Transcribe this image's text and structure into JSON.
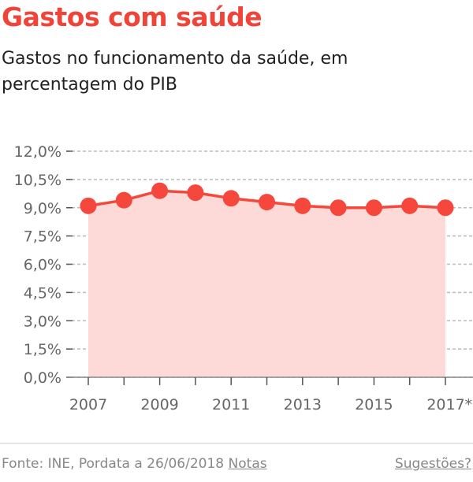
{
  "title": "Gastos com saúde",
  "subtitle": "Gastos no funcionamento da saúde, em percentagem do PIB",
  "footer": {
    "source": "Fonte: INE, Pordata a 26/06/2018",
    "notes_link": "Notas",
    "suggestions_link": "Sugestões?"
  },
  "chart_data": {
    "type": "area",
    "x": [
      2007,
      2008,
      2009,
      2010,
      2011,
      2012,
      2013,
      2014,
      2015,
      2016,
      2017
    ],
    "x_tick_labels": [
      "2007",
      "2009",
      "2011",
      "2013",
      "2015",
      "2017**"
    ],
    "x_tick_values": [
      2007,
      2009,
      2011,
      2013,
      2015,
      2017
    ],
    "values": [
      9.1,
      9.4,
      9.9,
      9.8,
      9.5,
      9.3,
      9.1,
      9.0,
      9.0,
      9.1,
      9.0
    ],
    "ylim": [
      0,
      12
    ],
    "y_ticks": [
      0,
      1.5,
      3,
      4.5,
      6,
      7.5,
      9,
      10.5,
      12
    ],
    "y_tick_labels": [
      "0,0%",
      "1,5%",
      "3,0%",
      "4,5%",
      "6,0%",
      "7,5%",
      "9,0%",
      "10,5%",
      "12,0%"
    ],
    "grid": true,
    "colors": {
      "line": "#f5473b",
      "fill": "#fdd9d7",
      "grid": "#bbbbbb"
    }
  }
}
